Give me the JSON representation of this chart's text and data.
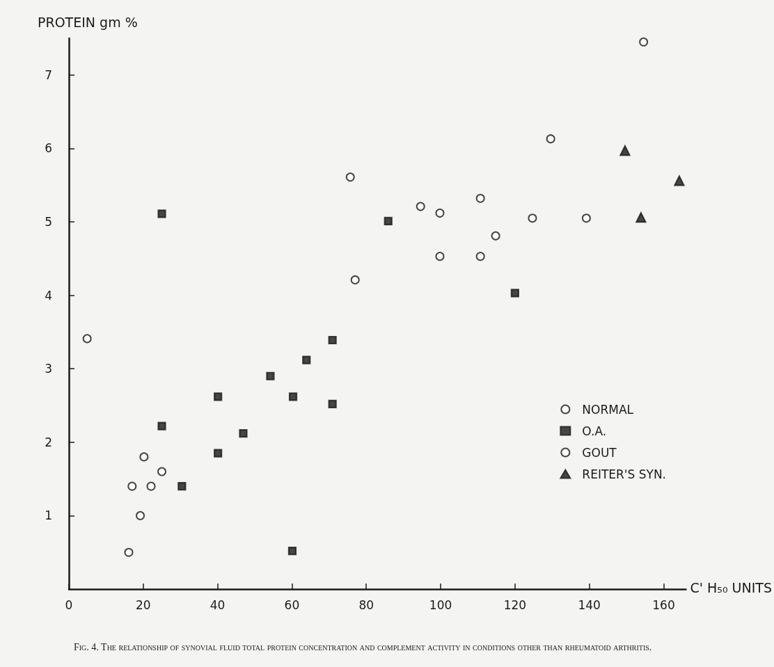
{
  "chart_data": {
    "type": "scatter",
    "xlabel": "C' H₅₀ UNITS",
    "ylabel": "PROTEIN gm %",
    "annotations": [
      "Fig. 4. The relationship of synovial fluid total protein concentration and complement activity in conditions other than rheumatoid arthritis."
    ],
    "xlim": [
      0,
      166
    ],
    "xticks": [
      0,
      20,
      40,
      60,
      80,
      100,
      120,
      140,
      160
    ],
    "ylim": [
      0,
      7.5
    ],
    "yticks": [
      1,
      2,
      3,
      4,
      5,
      6,
      7
    ],
    "grid": false,
    "legend": "right",
    "series": [
      {
        "name": "NORMAL",
        "color": "#1a1a1a",
        "marker": "circle",
        "x": [
          16.1,
          19.2,
          17.0,
          22.1,
          20.2,
          25.0
        ],
        "values": [
          0.5,
          1.0,
          1.4,
          1.4,
          1.8,
          1.6
        ]
      },
      {
        "name": "O.A.",
        "color": "#1a1a1a",
        "marker": "square",
        "x": [
          25.0,
          25.0,
          30.4,
          40.1,
          40.1,
          46.9,
          54.2,
          60.1,
          60.3,
          63.9,
          70.9,
          70.9,
          85.9,
          120.0
        ],
        "values": [
          5.11,
          2.22,
          1.4,
          1.85,
          2.62,
          2.12,
          2.9,
          0.52,
          2.62,
          3.12,
          3.39,
          2.52,
          5.01,
          4.03
        ]
      },
      {
        "name": "GOUT",
        "color": "#1a1a1a",
        "marker": "circle",
        "x": [
          4.9,
          75.7,
          77.0,
          94.6,
          99.8,
          99.8,
          110.7,
          110.7,
          114.8,
          124.7,
          129.6,
          139.2,
          154.6
        ],
        "values": [
          3.41,
          5.61,
          4.21,
          5.21,
          5.12,
          4.53,
          5.32,
          4.53,
          4.81,
          5.05,
          6.13,
          5.05,
          7.45
        ]
      },
      {
        "name": "REITER'S SYN.",
        "color": "#1a1a1a",
        "marker": "triangle",
        "x": [
          149.6,
          164.2,
          153.9
        ],
        "values": [
          5.97,
          5.56,
          5.06
        ]
      }
    ]
  }
}
